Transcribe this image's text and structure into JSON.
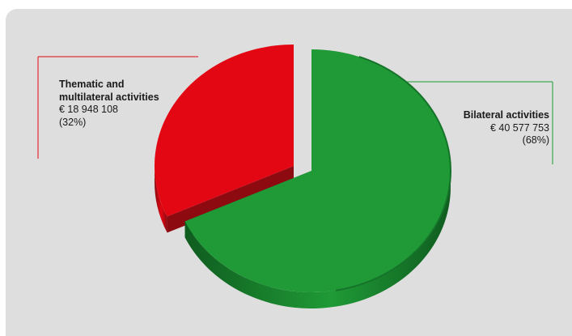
{
  "chart_data": {
    "type": "pie",
    "title": "",
    "slices": [
      {
        "label_lines": [
          "Thematic and",
          "multilateral activities"
        ],
        "value_text": "€ 18 948 108",
        "percent_text": "(32%)",
        "value": 18948108,
        "percent": 32,
        "color": "#e30613",
        "dark_color": "#8c0a10",
        "exploded": true
      },
      {
        "label_lines": [
          "Bilateral activities"
        ],
        "value_text": "€ 40 577 753",
        "percent_text": "(68%)",
        "value": 40577753,
        "percent": 68,
        "color": "#1f9a36",
        "dark_color": "#0f5c1f",
        "exploded": false
      }
    ],
    "style": "3d",
    "background_color": "#dedede",
    "leader_colors": {
      "thematic": "#e30613",
      "bilateral": "#1f9a36"
    }
  }
}
